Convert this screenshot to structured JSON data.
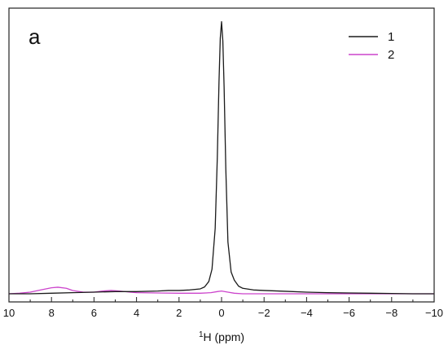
{
  "chart_data": {
    "type": "line",
    "panel_label": "a",
    "xlabel_sup": "1",
    "xlabel_main": "H (ppm)",
    "ylabel": "",
    "xlim": [
      10,
      -10
    ],
    "ylim": [
      -0.03,
      1.05
    ],
    "x_reversed": true,
    "y_ticks_shown": false,
    "grid": false,
    "legend_position": "top-right",
    "x_ticks": [
      10,
      8,
      6,
      4,
      2,
      0,
      -2,
      -4,
      -6,
      -8,
      -10
    ],
    "x_tick_labels": [
      "10",
      "8",
      "6",
      "4",
      "2",
      "0",
      "−2",
      "−4",
      "−6",
      "−8",
      "−10"
    ],
    "series": [
      {
        "name": "1",
        "color": "#1a1a1a",
        "points": [
          [
            10,
            0.0
          ],
          [
            9,
            0.0
          ],
          [
            8,
            0.002
          ],
          [
            7,
            0.004
          ],
          [
            6,
            0.006
          ],
          [
            5,
            0.008
          ],
          [
            4,
            0.008
          ],
          [
            3,
            0.01
          ],
          [
            2.5,
            0.012
          ],
          [
            2,
            0.012
          ],
          [
            1.5,
            0.014
          ],
          [
            1.0,
            0.018
          ],
          [
            0.8,
            0.025
          ],
          [
            0.6,
            0.045
          ],
          [
            0.45,
            0.09
          ],
          [
            0.3,
            0.24
          ],
          [
            0.2,
            0.5
          ],
          [
            0.12,
            0.78
          ],
          [
            0.06,
            0.94
          ],
          [
            0.0,
            1.0
          ],
          [
            -0.06,
            0.93
          ],
          [
            -0.12,
            0.76
          ],
          [
            -0.2,
            0.46
          ],
          [
            -0.3,
            0.19
          ],
          [
            -0.45,
            0.08
          ],
          [
            -0.6,
            0.05
          ],
          [
            -0.8,
            0.028
          ],
          [
            -1.0,
            0.02
          ],
          [
            -1.5,
            0.014
          ],
          [
            -2,
            0.012
          ],
          [
            -3,
            0.009
          ],
          [
            -4,
            0.006
          ],
          [
            -5,
            0.004
          ],
          [
            -6,
            0.003
          ],
          [
            -7,
            0.002
          ],
          [
            -8,
            0.001
          ],
          [
            -9,
            0.0
          ],
          [
            -10,
            0.0
          ]
        ]
      },
      {
        "name": "2",
        "color": "#cc44cc",
        "points": [
          [
            10,
            0.0
          ],
          [
            9.5,
            0.002
          ],
          [
            9,
            0.006
          ],
          [
            8.5,
            0.014
          ],
          [
            8,
            0.022
          ],
          [
            7.7,
            0.024
          ],
          [
            7.3,
            0.02
          ],
          [
            7,
            0.012
          ],
          [
            6.5,
            0.006
          ],
          [
            6,
            0.006
          ],
          [
            5.6,
            0.01
          ],
          [
            5.2,
            0.012
          ],
          [
            4.8,
            0.01
          ],
          [
            4.3,
            0.006
          ],
          [
            4,
            0.004
          ],
          [
            3,
            0.003
          ],
          [
            2,
            0.002
          ],
          [
            1,
            0.002
          ],
          [
            0.5,
            0.004
          ],
          [
            0.2,
            0.008
          ],
          [
            0,
            0.01
          ],
          [
            -0.3,
            0.006
          ],
          [
            -0.6,
            0.002
          ],
          [
            -1,
            0.0
          ],
          [
            -2,
            0.0
          ],
          [
            -3,
            0.0
          ],
          [
            -4,
            0.0
          ],
          [
            -5,
            0.0
          ],
          [
            -6,
            0.0
          ],
          [
            -7,
            0.0
          ],
          [
            -8,
            0.0
          ],
          [
            -9,
            0.0
          ],
          [
            -10,
            0.0
          ]
        ]
      }
    ]
  }
}
